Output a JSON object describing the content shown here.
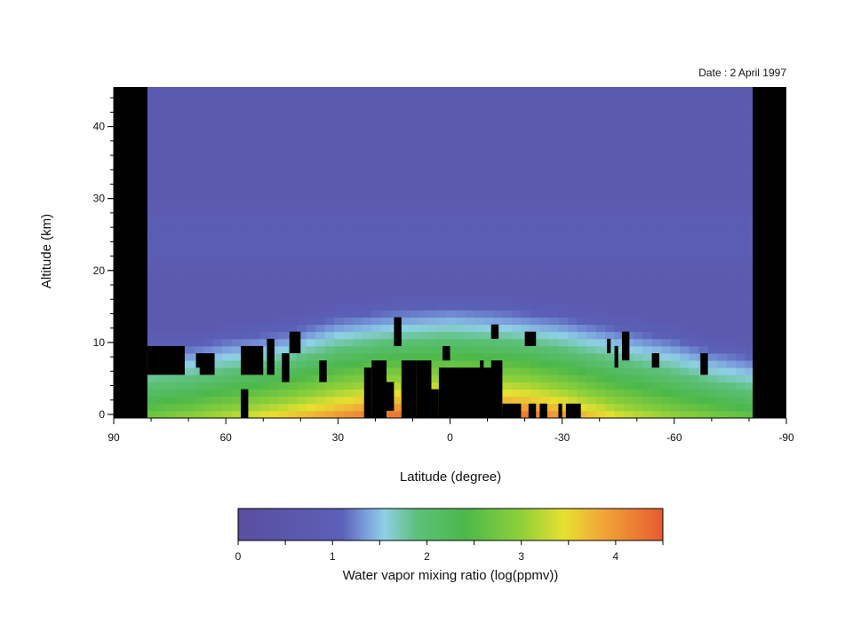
{
  "chart_data": {
    "type": "heatmap",
    "annotation": "Date : 2 April 1997",
    "xlabel": "Latitude (degree)",
    "ylabel": "Altitude (km)",
    "xlim": [
      90,
      -90
    ],
    "ylim": [
      -0.5,
      45.5
    ],
    "x_ticks": [
      90,
      60,
      30,
      0,
      -30,
      -60,
      -90
    ],
    "x_tick_labels": [
      "90",
      "60",
      "30",
      "0",
      "-30",
      "-60",
      "-90"
    ],
    "y_ticks": [
      0,
      10,
      20,
      30,
      40
    ],
    "y_tick_labels": [
      "0",
      "10",
      "20",
      "30",
      "40"
    ],
    "no_data_latitude_bands": [
      [
        90,
        81
      ],
      [
        -81,
        -90
      ]
    ],
    "colorbar": {
      "title": "Water vapor mixing ratio (log(ppmv))",
      "range": [
        0,
        4.5
      ],
      "ticks": [
        0,
        1,
        2,
        3,
        4
      ],
      "tick_labels": [
        "0",
        "1",
        "2",
        "3",
        "4"
      ],
      "colors": [
        "#5a4ea0",
        "#5b60b8",
        "#7a9edc",
        "#8fd0e6",
        "#5cc07a",
        "#4cb84a",
        "#8fd03a",
        "#e6e030",
        "#f0a838",
        "#e85a30"
      ],
      "color_stops": [
        0,
        1.1,
        1.35,
        1.55,
        1.9,
        2.4,
        3.0,
        3.45,
        3.85,
        4.5
      ]
    },
    "profile_model": {
      "tropopause_by_latitude": [
        [
          81,
          8
        ],
        [
          70,
          8
        ],
        [
          60,
          9
        ],
        [
          45,
          10
        ],
        [
          30,
          12
        ],
        [
          15,
          13
        ],
        [
          0,
          13.5
        ],
        [
          -15,
          13
        ],
        [
          -30,
          12
        ],
        [
          -45,
          10.5
        ],
        [
          -60,
          9
        ],
        [
          -70,
          7.5
        ],
        [
          -81,
          6.5
        ]
      ],
      "surface_value_by_latitude": [
        [
          81,
          2.8
        ],
        [
          60,
          3.3
        ],
        [
          45,
          3.7
        ],
        [
          30,
          4.1
        ],
        [
          20,
          4.4
        ],
        [
          0,
          4.5
        ],
        [
          -20,
          4.4
        ],
        [
          -30,
          4.1
        ],
        [
          -45,
          3.5
        ],
        [
          -60,
          3.1
        ],
        [
          -81,
          2.7
        ]
      ],
      "stratosphere_value": 0.75,
      "mid_stratosphere_value": 0.9
    },
    "missing_data_cells": [
      [
        [
          78,
          81
        ],
        [
          6,
          9
        ]
      ],
      [
        [
          71,
          78
        ],
        [
          6,
          9
        ]
      ],
      [
        [
          66,
          68
        ],
        [
          7,
          8
        ]
      ],
      [
        [
          63,
          67
        ],
        [
          6,
          8
        ]
      ],
      [
        [
          54,
          56
        ],
        [
          0,
          3
        ]
      ],
      [
        [
          50,
          56
        ],
        [
          6,
          9
        ]
      ],
      [
        [
          47,
          49
        ],
        [
          6,
          10
        ]
      ],
      [
        [
          43,
          45
        ],
        [
          5,
          8
        ]
      ],
      [
        [
          40,
          43
        ],
        [
          9,
          11
        ]
      ],
      [
        [
          33,
          35
        ],
        [
          5,
          7
        ]
      ],
      [
        [
          21,
          23
        ],
        [
          0,
          6
        ]
      ],
      [
        [
          17,
          21
        ],
        [
          0,
          7
        ]
      ],
      [
        [
          15,
          17
        ],
        [
          1,
          4
        ]
      ],
      [
        [
          13,
          15
        ],
        [
          10,
          13
        ]
      ],
      [
        [
          12,
          13
        ],
        [
          3,
          4
        ]
      ],
      [
        [
          9,
          13
        ],
        [
          0,
          7
        ]
      ],
      [
        [
          5,
          9
        ],
        [
          0,
          7
        ]
      ],
      [
        [
          3,
          5
        ],
        [
          0,
          3
        ]
      ],
      [
        [
          -14,
          3
        ],
        [
          0,
          6
        ]
      ],
      [
        [
          -14,
          -11
        ],
        [
          6,
          7
        ]
      ],
      [
        [
          -9,
          -8
        ],
        [
          6,
          7
        ]
      ],
      [
        [
          2,
          0
        ],
        [
          8,
          9
        ]
      ],
      [
        [
          -13,
          -11
        ],
        [
          11,
          12
        ]
      ],
      [
        [
          -17,
          -14
        ],
        [
          0,
          1
        ]
      ],
      [
        [
          -23,
          -20
        ],
        [
          10,
          11
        ]
      ],
      [
        [
          -19,
          -17
        ],
        [
          0,
          1
        ]
      ],
      [
        [
          -23,
          -21
        ],
        [
          0,
          1
        ]
      ],
      [
        [
          -26,
          -24
        ],
        [
          0,
          1
        ]
      ],
      [
        [
          -30,
          -29
        ],
        [
          0,
          1
        ]
      ],
      [
        [
          -35,
          -31
        ],
        [
          0,
          1
        ]
      ],
      [
        [
          -43,
          -42
        ],
        [
          9,
          10
        ]
      ],
      [
        [
          -48,
          -46
        ],
        [
          8,
          11
        ]
      ],
      [
        [
          -45,
          -44
        ],
        [
          7,
          9
        ]
      ],
      [
        [
          -56,
          -54
        ],
        [
          7,
          8
        ]
      ],
      [
        [
          -69,
          -67
        ],
        [
          6,
          8
        ]
      ]
    ]
  }
}
